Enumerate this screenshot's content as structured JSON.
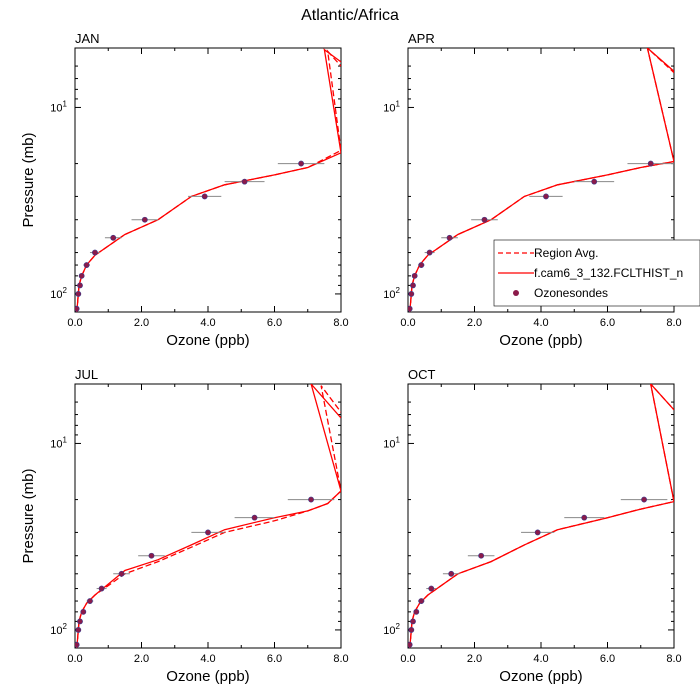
{
  "title": "Atlantic/Africa",
  "colors": {
    "model": "#ff0000",
    "region_avg": "#ff0000",
    "sondes": "#8b1a4a",
    "errorbar": "#888888"
  },
  "legend": {
    "panel": "APR",
    "entries": [
      {
        "label": "Region Avg.",
        "style": "dashed"
      },
      {
        "label": "f.cam6_3_132.FCLTHIST_n",
        "style": "solid"
      },
      {
        "label": "Ozonesondes",
        "style": "marker"
      }
    ]
  },
  "chart_data": [
    {
      "type": "line",
      "panel": "JAN",
      "xlabel": "Ozone (ppb)",
      "ylabel": "Pressure (mb)",
      "xlim": [
        0,
        8
      ],
      "ylim": [
        125,
        4.8
      ],
      "yscale": "log",
      "xticks": [
        "0.0",
        "2.0",
        "4.0",
        "6.0",
        "8.0"
      ],
      "yticks": [
        {
          "value": 10,
          "base": "10",
          "exp": "1"
        },
        {
          "value": 100,
          "base": "10",
          "exp": "2"
        }
      ],
      "series": [
        {
          "name": "Region Avg.",
          "style": "dashed",
          "x": [
            0.05,
            0.08,
            0.12,
            0.2,
            0.35,
            0.6,
            1.5,
            2.5,
            3.5,
            4.5,
            6.0,
            7.0,
            8.0,
            7.6,
            8.0
          ],
          "y": [
            125,
            110,
            90,
            80,
            70,
            62,
            48,
            40,
            30,
            26,
            23,
            21,
            17,
            5,
            6
          ]
        },
        {
          "name": "f.cam6_3_132.FCLTHIST_n",
          "style": "solid",
          "x": [
            0.05,
            0.08,
            0.12,
            0.2,
            0.35,
            0.6,
            1.5,
            2.5,
            3.5,
            4.5,
            6.0,
            7.0,
            8.0,
            7.5,
            8.0
          ],
          "y": [
            125,
            110,
            90,
            80,
            70,
            62,
            48,
            40,
            30,
            26,
            23,
            21,
            17.5,
            4.9,
            5.7
          ]
        },
        {
          "name": "Ozonesondes",
          "style": "marker",
          "x": [
            0.05,
            0.1,
            0.15,
            0.2,
            0.35,
            0.6,
            1.15,
            2.1,
            3.9,
            5.1,
            6.8
          ],
          "y": [
            120,
            100,
            90,
            80,
            70,
            60,
            50,
            40,
            30,
            25,
            20
          ],
          "xerr": [
            0.05,
            0.05,
            0.05,
            0.08,
            0.1,
            0.15,
            0.25,
            0.4,
            0.5,
            0.6,
            0.7
          ]
        }
      ]
    },
    {
      "type": "line",
      "panel": "APR",
      "xlabel": "Ozone (ppb)",
      "ylabel": "",
      "xlim": [
        0,
        8
      ],
      "ylim": [
        125,
        4.8
      ],
      "yscale": "log",
      "xticks": [
        "0.0",
        "2.0",
        "4.0",
        "6.0",
        "8.0"
      ],
      "yticks": [
        {
          "value": 10,
          "base": "10",
          "exp": "1"
        },
        {
          "value": 100,
          "base": "10",
          "exp": "2"
        }
      ],
      "series": [
        {
          "name": "Region Avg.",
          "style": "dashed",
          "x": [
            0.05,
            0.08,
            0.12,
            0.2,
            0.35,
            0.6,
            1.5,
            2.5,
            3.5,
            4.5,
            6.0,
            7.0,
            8.0,
            7.2,
            8.0
          ],
          "y": [
            125,
            110,
            90,
            80,
            70,
            62,
            48,
            40,
            30,
            26,
            23,
            21,
            19.5,
            4.8,
            6.5
          ]
        },
        {
          "name": "f.cam6_3_132.FCLTHIST_n",
          "style": "solid",
          "x": [
            0.05,
            0.08,
            0.12,
            0.2,
            0.35,
            0.6,
            1.5,
            2.5,
            3.5,
            4.5,
            6.0,
            7.0,
            8.0,
            7.2,
            8.0
          ],
          "y": [
            125,
            110,
            90,
            80,
            70,
            62,
            48,
            40,
            30,
            26,
            23,
            21,
            19.5,
            4.8,
            6.4
          ]
        },
        {
          "name": "Ozonesondes",
          "style": "marker",
          "x": [
            0.05,
            0.1,
            0.15,
            0.2,
            0.4,
            0.65,
            1.25,
            2.3,
            4.15,
            5.6,
            7.3
          ],
          "y": [
            120,
            100,
            90,
            80,
            70,
            60,
            50,
            40,
            30,
            25,
            20
          ],
          "xerr": [
            0.05,
            0.05,
            0.05,
            0.08,
            0.1,
            0.15,
            0.25,
            0.4,
            0.5,
            0.6,
            0.7
          ]
        }
      ]
    },
    {
      "type": "line",
      "panel": "JUL",
      "xlabel": "Ozone (ppb)",
      "ylabel": "Pressure (mb)",
      "xlim": [
        0,
        8
      ],
      "ylim": [
        125,
        4.8
      ],
      "yscale": "log",
      "xticks": [
        "0.0",
        "2.0",
        "4.0",
        "6.0",
        "8.0"
      ],
      "yticks": [
        {
          "value": 10,
          "base": "10",
          "exp": "1"
        },
        {
          "value": 100,
          "base": "10",
          "exp": "2"
        }
      ],
      "series": [
        {
          "name": "Region Avg.",
          "style": "dashed",
          "x": [
            0.05,
            0.08,
            0.12,
            0.2,
            0.35,
            0.6,
            1.5,
            2.5,
            3.5,
            4.5,
            6.0,
            7.0,
            7.6,
            8.0,
            7.4,
            8.0
          ],
          "y": [
            125,
            110,
            90,
            80,
            72,
            65,
            50,
            43,
            36,
            30,
            26,
            23,
            21,
            18,
            4.9,
            6.8
          ]
        },
        {
          "name": "f.cam6_3_132.FCLTHIST_n",
          "style": "solid",
          "x": [
            0.05,
            0.08,
            0.12,
            0.2,
            0.35,
            0.6,
            1.5,
            2.5,
            3.5,
            4.5,
            6.0,
            7.0,
            7.6,
            8.0,
            7.1,
            8.0
          ],
          "y": [
            125,
            110,
            90,
            80,
            72,
            65,
            48,
            42,
            35,
            29,
            25,
            23,
            21,
            18,
            4.8,
            7.3
          ]
        },
        {
          "name": "Ozonesondes",
          "style": "marker",
          "x": [
            0.05,
            0.1,
            0.15,
            0.25,
            0.45,
            0.8,
            1.4,
            2.3,
            4.0,
            5.4,
            7.1
          ],
          "y": [
            120,
            100,
            90,
            80,
            70,
            60,
            50,
            40,
            30,
            25,
            20
          ],
          "xerr": [
            0.05,
            0.05,
            0.05,
            0.08,
            0.1,
            0.15,
            0.25,
            0.4,
            0.5,
            0.6,
            0.7
          ]
        }
      ]
    },
    {
      "type": "line",
      "panel": "OCT",
      "xlabel": "Ozone (ppb)",
      "ylabel": "",
      "xlim": [
        0,
        8
      ],
      "ylim": [
        125,
        4.8
      ],
      "yscale": "log",
      "xticks": [
        "0.0",
        "2.0",
        "4.0",
        "6.0",
        "8.0"
      ],
      "yticks": [
        {
          "value": 10,
          "base": "10",
          "exp": "1"
        },
        {
          "value": 100,
          "base": "10",
          "exp": "2"
        }
      ],
      "series": [
        {
          "name": "Region Avg.",
          "style": "dashed",
          "x": [
            0.05,
            0.08,
            0.12,
            0.2,
            0.35,
            0.6,
            1.5,
            2.5,
            3.5,
            4.5,
            6.0,
            7.0,
            8.0,
            7.3,
            8.0
          ],
          "y": [
            125,
            110,
            90,
            80,
            72,
            65,
            50,
            43,
            35,
            29,
            25,
            22.5,
            20.5,
            4.8,
            6.6
          ]
        },
        {
          "name": "f.cam6_3_132.FCLTHIST_n",
          "style": "solid",
          "x": [
            0.05,
            0.08,
            0.12,
            0.2,
            0.35,
            0.6,
            1.5,
            2.5,
            3.5,
            4.5,
            6.0,
            7.0,
            8.0,
            7.3,
            8.0
          ],
          "y": [
            125,
            110,
            90,
            80,
            72,
            65,
            50,
            43,
            35,
            29,
            25,
            22.5,
            20.5,
            4.8,
            6.6
          ]
        },
        {
          "name": "Ozonesondes",
          "style": "marker",
          "x": [
            0.05,
            0.1,
            0.15,
            0.25,
            0.4,
            0.7,
            1.3,
            2.2,
            3.9,
            5.3,
            7.1
          ],
          "y": [
            120,
            100,
            90,
            80,
            70,
            60,
            50,
            40,
            30,
            25,
            20
          ],
          "xerr": [
            0.05,
            0.05,
            0.05,
            0.08,
            0.1,
            0.15,
            0.25,
            0.4,
            0.5,
            0.6,
            0.7
          ]
        }
      ]
    }
  ]
}
